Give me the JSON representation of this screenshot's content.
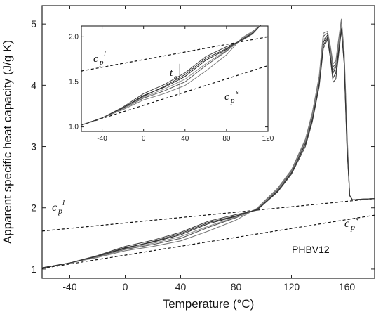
{
  "chart_data": [
    {
      "type": "line",
      "xlabel": "Temperature (°C)",
      "ylabel": "Apparent specific heat capacity (J/g K)",
      "xlim": [
        -60,
        180
      ],
      "ylim": [
        0.85,
        5.3
      ],
      "xticks": [
        -40,
        0,
        40,
        80,
        120,
        160
      ],
      "yticks": [
        1,
        2,
        3,
        4,
        5
      ],
      "annotations": {
        "sample": "PHBV12",
        "cpl_main": "p",
        "cpl_sub": "l",
        "cps_sub": "s"
      },
      "baselines": [
        {
          "name": "cp liquid",
          "x": [
            -60,
            180
          ],
          "y": [
            1.62,
            2.15
          ]
        },
        {
          "name": "cp solid",
          "x": [
            -60,
            180
          ],
          "y": [
            1.01,
            1.88
          ]
        }
      ],
      "series": [
        {
          "x": [
            -60,
            -40,
            -20,
            0,
            20,
            40,
            60,
            80,
            95,
            110,
            120,
            130,
            135,
            140,
            143,
            146,
            148,
            150,
            152,
            154,
            156,
            158,
            160,
            162,
            164,
            170,
            180
          ],
          "y": [
            1.02,
            1.1,
            1.2,
            1.32,
            1.4,
            1.5,
            1.68,
            1.84,
            1.98,
            2.3,
            2.6,
            3.1,
            3.5,
            4.1,
            4.8,
            4.85,
            4.6,
            4.3,
            4.35,
            4.7,
            5.05,
            4.5,
            3.2,
            2.2,
            2.13,
            2.14,
            2.15
          ]
        },
        {
          "x": [
            -60,
            -40,
            -20,
            0,
            20,
            40,
            60,
            80,
            95,
            110,
            120,
            130,
            135,
            140,
            143,
            146,
            148,
            150,
            152,
            154,
            156,
            158,
            160,
            162,
            164,
            170,
            180
          ],
          "y": [
            1.02,
            1.1,
            1.21,
            1.35,
            1.44,
            1.56,
            1.74,
            1.86,
            1.97,
            2.28,
            2.58,
            3.05,
            3.45,
            4.05,
            4.7,
            4.82,
            4.5,
            4.2,
            4.3,
            4.6,
            4.95,
            4.4,
            3.1,
            2.2,
            2.13,
            2.14,
            2.15
          ]
        },
        {
          "x": [
            -60,
            -40,
            -20,
            0,
            20,
            40,
            60,
            80,
            95,
            110,
            120,
            130,
            135,
            140,
            143,
            146,
            148,
            150,
            152,
            154,
            156,
            158,
            160,
            162,
            164,
            170,
            180
          ],
          "y": [
            1.02,
            1.1,
            1.19,
            1.3,
            1.37,
            1.46,
            1.62,
            1.8,
            1.99,
            2.32,
            2.62,
            3.12,
            3.55,
            4.15,
            4.85,
            4.88,
            4.65,
            4.35,
            4.4,
            4.75,
            5.08,
            4.55,
            3.3,
            2.2,
            2.13,
            2.14,
            2.15
          ]
        },
        {
          "x": [
            -60,
            -40,
            -20,
            0,
            20,
            40,
            60,
            80,
            95,
            110,
            120,
            130,
            135,
            140,
            143,
            146,
            148,
            150,
            152,
            154,
            156,
            158,
            160,
            162,
            164,
            170,
            180
          ],
          "y": [
            1.02,
            1.1,
            1.22,
            1.37,
            1.47,
            1.6,
            1.78,
            1.89,
            1.96,
            2.26,
            2.55,
            3.0,
            3.4,
            3.98,
            4.6,
            4.75,
            4.45,
            4.05,
            4.1,
            4.5,
            4.9,
            4.35,
            3.0,
            2.2,
            2.13,
            2.14,
            2.15
          ]
        },
        {
          "x": [
            -60,
            -40,
            -20,
            0,
            20,
            40,
            60,
            80,
            95,
            110,
            120,
            130,
            135,
            140,
            143,
            146,
            148,
            150,
            152,
            154,
            156,
            158,
            160,
            162,
            164,
            170,
            180
          ],
          "y": [
            1.02,
            1.1,
            1.2,
            1.33,
            1.42,
            1.53,
            1.7,
            1.85,
            1.98,
            2.29,
            2.59,
            3.08,
            3.48,
            4.08,
            4.75,
            4.8,
            4.55,
            4.25,
            4.32,
            4.65,
            5.0,
            4.45,
            3.15,
            2.2,
            2.13,
            2.14,
            2.15
          ]
        },
        {
          "x": [
            -60,
            -40,
            -20,
            0,
            20,
            40,
            60,
            80,
            95,
            110,
            120,
            130,
            135,
            140,
            143,
            146,
            148,
            150,
            152,
            154,
            156,
            158,
            160,
            162,
            164,
            170,
            180
          ],
          "y": [
            1.02,
            1.1,
            1.21,
            1.34,
            1.45,
            1.58,
            1.76,
            1.87,
            1.97,
            2.27,
            2.57,
            3.04,
            3.43,
            4.02,
            4.65,
            4.78,
            4.48,
            4.12,
            4.2,
            4.55,
            4.92,
            4.38,
            3.05,
            2.2,
            2.13,
            2.14,
            2.15
          ]
        }
      ]
    },
    {
      "type": "line",
      "xlim": [
        -60,
        120
      ],
      "ylim": [
        0.95,
        2.12
      ],
      "xticks": [
        -40,
        0,
        40,
        80,
        120
      ],
      "yticks": [
        "1.0",
        "1.5",
        "2.0"
      ],
      "annotations": {
        "ta_main": "t",
        "ta_sub": "a",
        "cpl_main": "p",
        "cpl_sub": "l",
        "cps_sub": "s"
      },
      "ta_marker_x": 35,
      "ta_marker_y": [
        1.35,
        1.7
      ],
      "baselines": [
        {
          "name": "cp liquid",
          "x": [
            -60,
            120
          ],
          "y": [
            1.62,
            2.0
          ]
        },
        {
          "name": "cp solid",
          "x": [
            -60,
            120
          ],
          "y": [
            1.02,
            1.68
          ]
        }
      ],
      "series": [
        {
          "x": [
            -60,
            -40,
            -20,
            0,
            20,
            40,
            60,
            80,
            95,
            105,
            113
          ],
          "y": [
            1.02,
            1.1,
            1.2,
            1.32,
            1.4,
            1.5,
            1.68,
            1.84,
            1.98,
            2.05,
            2.13
          ]
        },
        {
          "x": [
            -60,
            -40,
            -20,
            0,
            20,
            40,
            60,
            80,
            95,
            105,
            113
          ],
          "y": [
            1.02,
            1.1,
            1.21,
            1.35,
            1.44,
            1.56,
            1.74,
            1.86,
            1.97,
            2.04,
            2.13
          ]
        },
        {
          "x": [
            -60,
            -40,
            -20,
            0,
            20,
            40,
            60,
            80,
            95,
            105,
            113
          ],
          "y": [
            1.02,
            1.1,
            1.19,
            1.3,
            1.37,
            1.46,
            1.62,
            1.8,
            1.99,
            2.06,
            2.13
          ]
        },
        {
          "x": [
            -60,
            -40,
            -20,
            0,
            20,
            40,
            60,
            80,
            95,
            105,
            113
          ],
          "y": [
            1.02,
            1.1,
            1.22,
            1.37,
            1.47,
            1.6,
            1.78,
            1.89,
            1.96,
            2.03,
            2.13
          ]
        },
        {
          "x": [
            -60,
            -40,
            -20,
            0,
            20,
            40,
            60,
            80,
            95,
            105,
            113
          ],
          "y": [
            1.02,
            1.1,
            1.2,
            1.33,
            1.42,
            1.53,
            1.7,
            1.85,
            1.98,
            2.05,
            2.13
          ]
        },
        {
          "x": [
            -60,
            -40,
            -20,
            0,
            20,
            40,
            60,
            80,
            95,
            105,
            113
          ],
          "y": [
            1.02,
            1.1,
            1.21,
            1.34,
            1.45,
            1.58,
            1.76,
            1.87,
            1.97,
            2.04,
            2.13
          ]
        }
      ]
    }
  ]
}
